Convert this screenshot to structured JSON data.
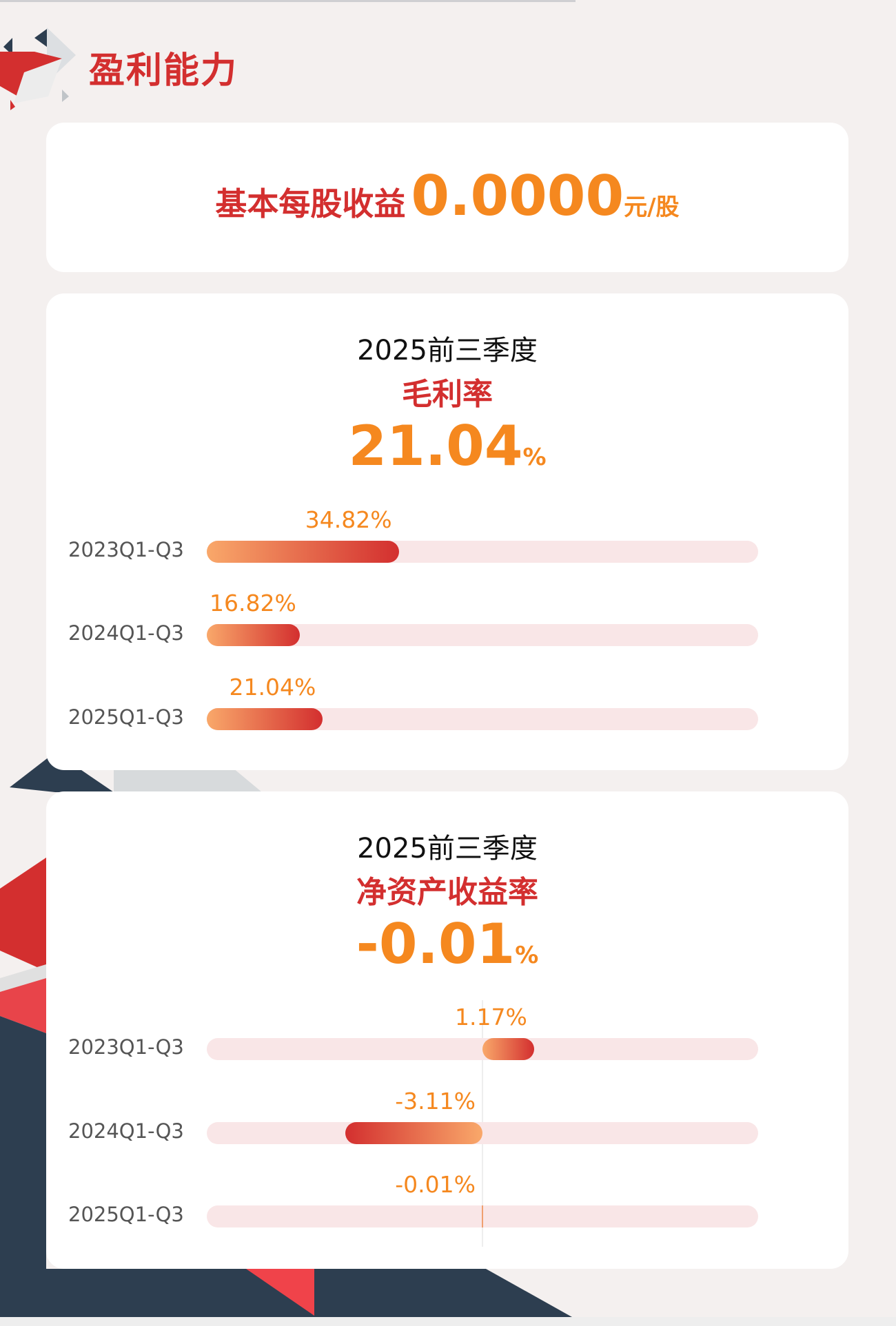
{
  "section": {
    "title": "盈利能力"
  },
  "eps": {
    "label": "基本每股收益",
    "value": "0.0000",
    "unit": "元/股"
  },
  "gross_margin": {
    "period": "2025前三季度",
    "metric": "毛利率",
    "value": "21.04",
    "unit": "%",
    "range": [
      0,
      100
    ],
    "rows": [
      {
        "label": "2023Q1-Q3",
        "value": 34.82,
        "text": "34.82%"
      },
      {
        "label": "2024Q1-Q3",
        "value": 16.82,
        "text": "16.82%"
      },
      {
        "label": "2025Q1-Q3",
        "value": 21.04,
        "text": "21.04%"
      }
    ]
  },
  "roe": {
    "period": "2025前三季度",
    "metric": "净资产收益率",
    "value": "-0.01",
    "unit": "%",
    "range": [
      -6.25,
      6.25
    ],
    "rows": [
      {
        "label": "2023Q1-Q3",
        "value": 1.17,
        "text": "1.17%"
      },
      {
        "label": "2024Q1-Q3",
        "value": -3.11,
        "text": "-3.11%"
      },
      {
        "label": "2025Q1-Q3",
        "value": -0.01,
        "text": "-0.01%"
      }
    ]
  },
  "colors": {
    "accent_red": "#d32f2f",
    "accent_orange": "#f5881f",
    "bar_light": "#f9a86a",
    "track": "#f9e6e7",
    "navy": "#2d3e50"
  }
}
